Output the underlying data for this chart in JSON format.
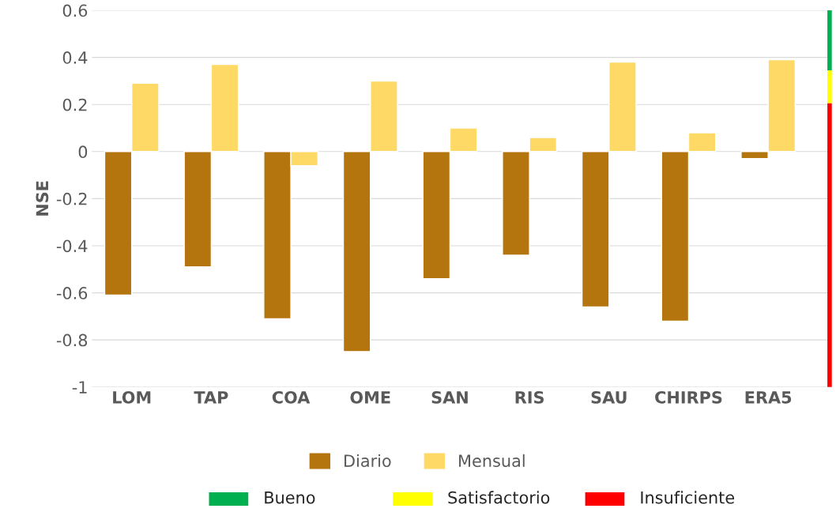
{
  "chart_data": {
    "type": "bar",
    "ylabel": "NSE",
    "categories": [
      "LOM",
      "TAP",
      "COA",
      "OME",
      "SAN",
      "RIS",
      "SAU",
      "CHIRPS",
      "ERA5"
    ],
    "series": [
      {
        "name": "Diario",
        "color": "#b4750e",
        "values": [
          -0.61,
          -0.49,
          -0.71,
          -0.85,
          -0.54,
          -0.44,
          -0.66,
          -0.72,
          -0.03
        ]
      },
      {
        "name": "Mensual",
        "color": "#ffd966",
        "values": [
          0.29,
          0.37,
          -0.06,
          0.3,
          0.1,
          0.06,
          0.38,
          0.08,
          0.39
        ]
      }
    ],
    "ylim": [
      -1,
      0.6
    ],
    "yticks": [
      -1,
      {
        "value": -0.8,
        "label": "-0.8"
      },
      {
        "value": -0.6,
        "label": "-0.6"
      },
      {
        "value": -0.4,
        "label": "-0.4"
      },
      {
        "value": -0.2,
        "label": "-0.2"
      },
      0,
      0.2,
      0.4,
      0.6
    ],
    "annotations": [
      "Bueno",
      "Satisfactorio",
      "Insuficiente"
    ],
    "grid": "y",
    "legend": "bottom"
  }
}
